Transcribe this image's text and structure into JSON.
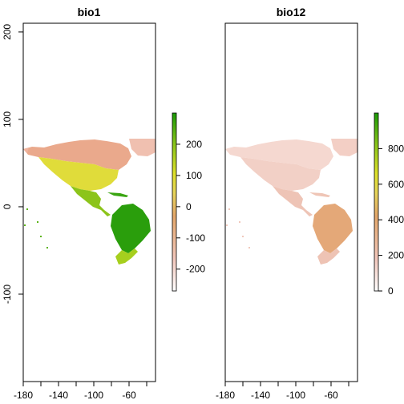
{
  "panels": [
    {
      "title": "bio1",
      "x_ticks": [
        "-180",
        "-140",
        "-100",
        "-60"
      ],
      "y_ticks": [
        "200",
        "100",
        "0",
        "-100"
      ],
      "legend_ticks": [
        "200",
        "100",
        "0",
        "-100",
        "-200"
      ],
      "colorbar": [
        "#ffffff",
        "#f3c8bc",
        "#e4a36a",
        "#e6d35a",
        "#dfe02a",
        "#8cc41a",
        "#1a9a06"
      ]
    },
    {
      "title": "bio12",
      "x_ticks": [
        "-180",
        "-140",
        "-100",
        "-60"
      ],
      "legend_ticks": [
        "8000",
        "6000",
        "4000",
        "2000",
        "0"
      ],
      "colorbar": [
        "#ffffff",
        "#f3c8bc",
        "#e4a36a",
        "#e6d35a",
        "#dfe02a",
        "#8cc41a",
        "#1a9a06"
      ]
    }
  ],
  "chart_data": [
    {
      "type": "heatmap",
      "title": "bio1",
      "xlim": [
        -180,
        -30
      ],
      "ylim": [
        -200,
        210
      ],
      "x_ticks": [
        -180,
        -160,
        -140,
        -120,
        -100,
        -80,
        -60,
        -40
      ],
      "x_tick_labels": [
        -180,
        -140,
        -100,
        -60
      ],
      "y_ticks": [
        200,
        100,
        0,
        -100
      ],
      "legend_range": [
        -270,
        300
      ],
      "legend_ticks": [
        200,
        100,
        0,
        -100,
        -200
      ],
      "grid": false
    },
    {
      "type": "heatmap",
      "title": "bio12",
      "xlim": [
        -180,
        -30
      ],
      "ylim": [
        -200,
        210
      ],
      "x_ticks": [
        -180,
        -160,
        -140,
        -120,
        -100,
        -80,
        -60,
        -40
      ],
      "x_tick_labels": [
        -180,
        -140,
        -100,
        -60
      ],
      "legend_range": [
        0,
        10000
      ],
      "legend_ticks": [
        8000,
        6000,
        4000,
        2000,
        0
      ],
      "grid": false
    }
  ]
}
